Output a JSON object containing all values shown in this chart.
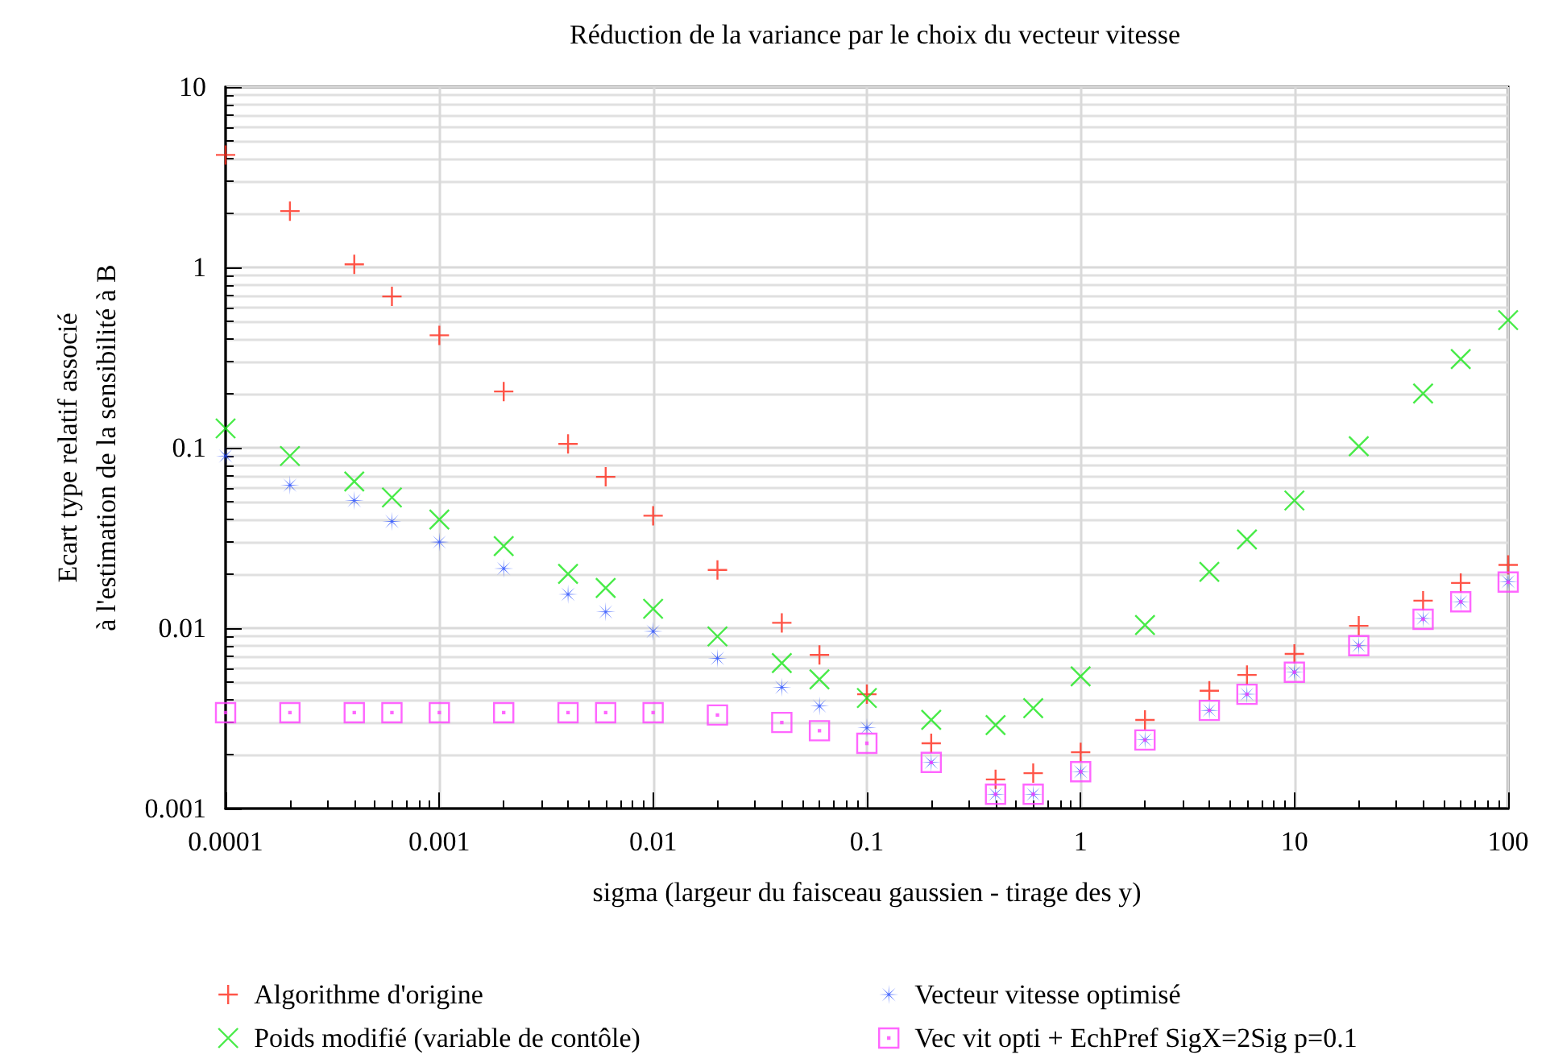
{
  "chart_data": {
    "type": "scatter",
    "title": "Réduction de la variance par le choix du vecteur vitesse",
    "xlabel": "sigma (largeur du faisceau gaussien - tirage des y)",
    "ylabel": "Ecart type relatif associé\nà l'estimation de la sensibilité à B",
    "x": [
      0.0001,
      0.0002,
      0.0004,
      0.0006,
      0.001,
      0.002,
      0.004,
      0.006,
      0.01,
      0.02,
      0.04,
      0.06,
      0.1,
      0.2,
      0.4,
      0.6,
      1,
      2,
      4,
      6,
      10,
      20,
      40,
      60,
      100
    ],
    "series": [
      {
        "name": "Algorithme d'origine",
        "color": "#ff2a1a",
        "marker": "cross",
        "values": [
          4.2,
          2.05,
          1.04,
          0.69,
          0.42,
          0.205,
          0.105,
          0.069,
          0.042,
          0.021,
          0.0107,
          0.0071,
          0.0043,
          0.0023,
          0.00145,
          0.00157,
          0.00205,
          0.0031,
          0.0045,
          0.0055,
          0.0072,
          0.0103,
          0.0142,
          0.0178,
          0.0224
        ]
      },
      {
        "name": "Poids modifié (variable de contôle)",
        "color": "#1ae61a",
        "marker": "x",
        "values": [
          0.128,
          0.09,
          0.065,
          0.053,
          0.04,
          0.0285,
          0.02,
          0.0167,
          0.0128,
          0.009,
          0.0064,
          0.0052,
          0.0041,
          0.0031,
          0.0029,
          0.0036,
          0.0054,
          0.0104,
          0.0205,
          0.031,
          0.051,
          0.102,
          0.2,
          0.31,
          0.51
        ]
      },
      {
        "name": "Vecteur vitesse optimisé",
        "color": "#1a44ff",
        "marker": "star",
        "values": [
          0.09,
          0.062,
          0.051,
          0.039,
          0.03,
          0.0214,
          0.0154,
          0.0123,
          0.0096,
          0.0068,
          0.0047,
          0.0037,
          0.0028,
          0.0018,
          0.0012,
          0.0012,
          0.0016,
          0.0024,
          0.0035,
          0.0043,
          0.0057,
          0.008,
          0.0113,
          0.014,
          0.0181
        ]
      },
      {
        "name": "Vec vit opti + EchPref SigX=2Sig p=0.1",
        "color": "#ff40ff",
        "marker": "square",
        "values": [
          0.0034,
          0.0034,
          0.0034,
          0.0034,
          0.0034,
          0.0034,
          0.0034,
          0.0034,
          0.0034,
          0.0033,
          0.003,
          0.0027,
          0.0023,
          0.0018,
          0.0012,
          0.0012,
          0.0016,
          0.0024,
          0.0035,
          0.0043,
          0.0057,
          0.008,
          0.0112,
          0.014,
          0.018
        ]
      }
    ],
    "log": "xy",
    "xlim": [
      0.0001,
      100
    ],
    "ylim": [
      0.001,
      10
    ],
    "xticks": [
      0.0001,
      0.001,
      0.01,
      0.1,
      1,
      10,
      100
    ],
    "yticks": [
      0.001,
      0.01,
      0.1,
      1,
      10
    ],
    "grid": true,
    "legend": "bottom"
  }
}
